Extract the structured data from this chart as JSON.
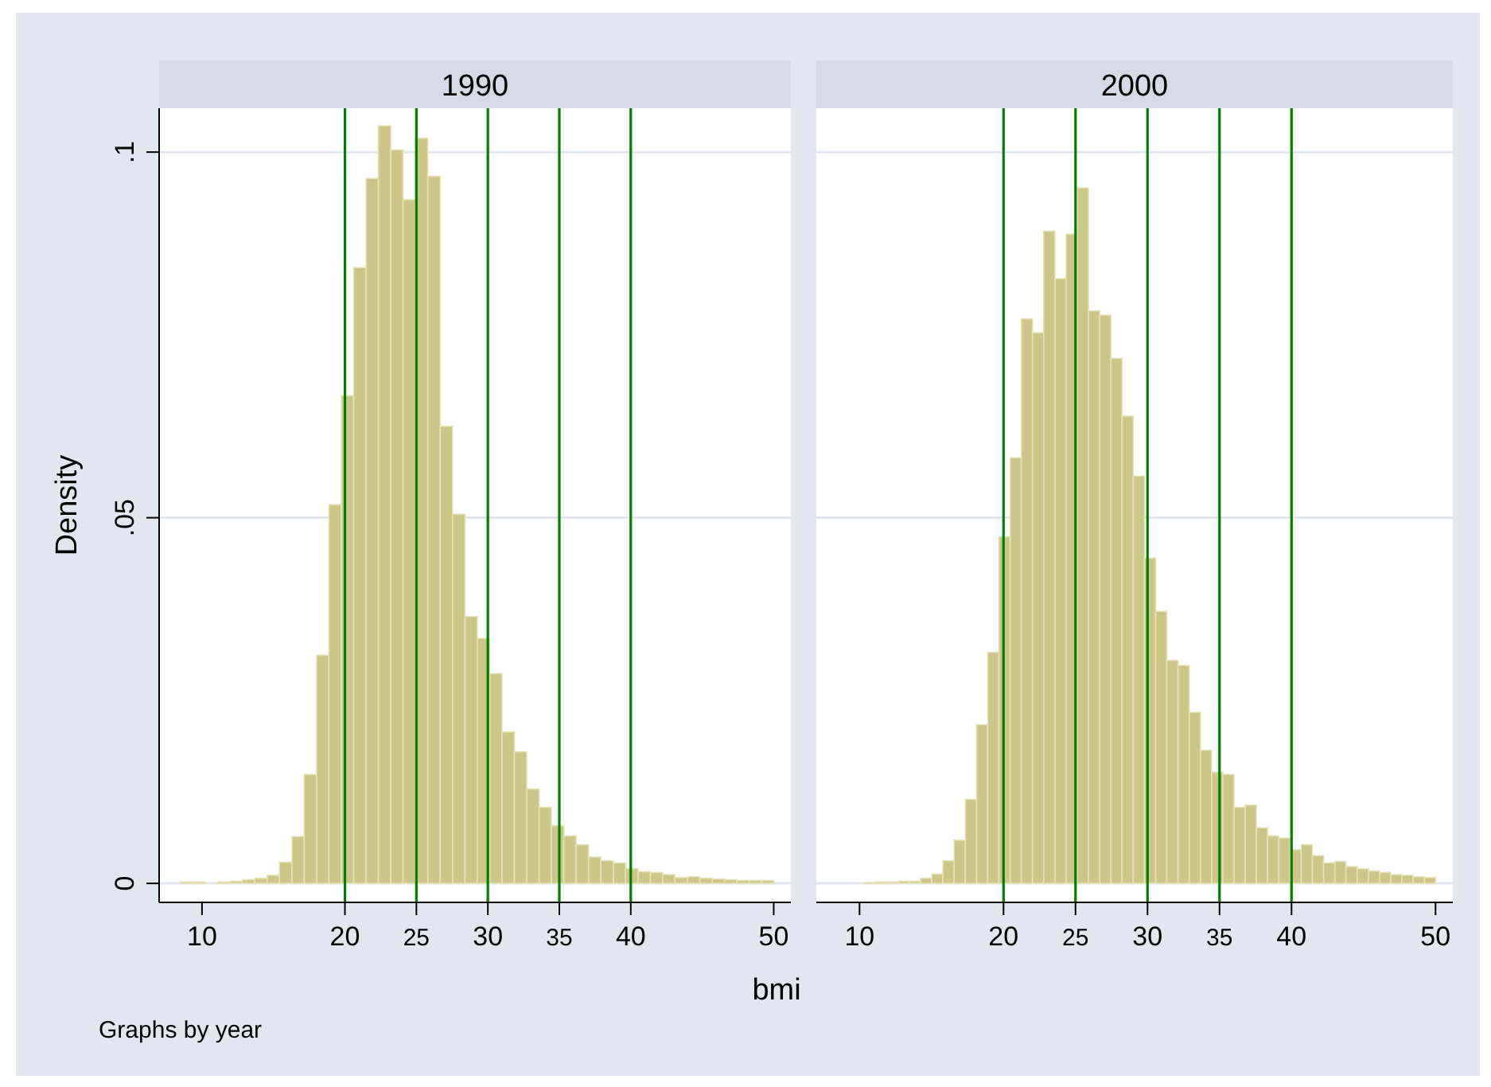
{
  "chart_data": [
    {
      "type": "histogram",
      "title": "1990",
      "ylabel": "Density",
      "xlabel": "bmi",
      "annotations": [
        "Graphs by year"
      ],
      "color": "#cdc689",
      "grid": "y",
      "tick_labels": true,
      "bins": [
        8.5,
        9.37,
        10.23,
        11.1,
        11.96,
        12.83,
        13.69,
        14.56,
        15.42,
        16.29,
        17.15,
        18.02,
        18.88,
        19.75,
        20.61,
        21.48,
        22.34,
        23.21,
        24.07,
        24.94,
        25.8,
        26.67,
        27.53,
        28.4,
        29.26,
        30.13,
        30.99,
        31.86,
        32.72,
        33.59,
        34.45,
        35.32,
        36.18,
        37.05,
        37.91,
        38.78,
        39.64,
        40.51,
        41.37,
        42.24,
        43.1,
        43.97,
        44.83,
        45.7,
        46.56,
        47.43,
        48.29,
        49.16,
        50.02
      ],
      "values": [
        0.0002,
        0.0002,
        0,
        0.0002,
        0.0003,
        0.0005,
        0.0007,
        0.0011,
        0.0029,
        0.0064,
        0.0149,
        0.0312,
        0.0518,
        0.0667,
        0.0842,
        0.0964,
        0.1036,
        0.1003,
        0.0935,
        0.1019,
        0.0967,
        0.0625,
        0.0505,
        0.0365,
        0.0335,
        0.0287,
        0.0207,
        0.018,
        0.0129,
        0.0104,
        0.0079,
        0.0065,
        0.0053,
        0.0036,
        0.0031,
        0.0028,
        0.002,
        0.0016,
        0.0015,
        0.0012,
        0.0008,
        0.0009,
        0.0007,
        0.0006,
        0.0005,
        0.0004,
        0.0004,
        0.0004
      ],
      "xlim": [
        7,
        51.2
      ],
      "ylim": [
        -0.0026,
        0.106
      ],
      "xticks": [
        10,
        20,
        25,
        30,
        35,
        40,
        50
      ],
      "yticks": [
        {
          "value": 0,
          "label": "0"
        },
        {
          "value": 0.05,
          "label": ".05"
        },
        {
          "value": 0.1,
          "label": ".1"
        }
      ],
      "ref_lines": [
        {
          "axis": "x",
          "value": 20,
          "color": "#008000"
        },
        {
          "axis": "x",
          "value": 25,
          "color": "#008000"
        },
        {
          "axis": "x",
          "value": 30,
          "color": "#008000"
        },
        {
          "axis": "x",
          "value": 35,
          "color": "#008000"
        },
        {
          "axis": "x",
          "value": 40,
          "color": "#008000"
        }
      ]
    },
    {
      "type": "histogram",
      "title": "2000",
      "color": "#cdc689",
      "grid": "y",
      "tick_labels": "x",
      "bins": [
        10.35,
        11.13,
        11.91,
        12.68,
        13.46,
        14.24,
        15.02,
        15.79,
        16.57,
        17.35,
        18.13,
        18.9,
        19.68,
        20.46,
        21.24,
        22.01,
        22.79,
        23.57,
        24.35,
        25.12,
        25.9,
        26.68,
        27.46,
        28.23,
        29.01,
        29.79,
        30.57,
        31.34,
        32.12,
        32.9,
        33.68,
        34.45,
        35.23,
        36.01,
        36.79,
        37.56,
        38.34,
        39.12,
        39.9,
        40.67,
        41.45,
        42.23,
        43.01,
        43.78,
        44.56,
        45.34,
        46.12,
        46.89,
        47.67,
        48.45,
        49.23,
        50.0
      ],
      "values": [
        0.0001,
        0.0002,
        0.0002,
        0.0003,
        0.0003,
        0.0007,
        0.0013,
        0.0031,
        0.0059,
        0.0115,
        0.0217,
        0.0316,
        0.0474,
        0.0582,
        0.0772,
        0.0753,
        0.0892,
        0.0827,
        0.0888,
        0.0951,
        0.0783,
        0.0777,
        0.0718,
        0.0639,
        0.0557,
        0.0445,
        0.0372,
        0.0305,
        0.0298,
        0.0234,
        0.0182,
        0.0152,
        0.0149,
        0.0104,
        0.0107,
        0.0076,
        0.0065,
        0.0062,
        0.0046,
        0.0053,
        0.0038,
        0.0028,
        0.003,
        0.0023,
        0.002,
        0.0017,
        0.0015,
        0.0012,
        0.0011,
        0.0009,
        0.0008
      ],
      "xlim": [
        7,
        51.2
      ],
      "ylim": [
        -0.0026,
        0.106
      ],
      "xticks": [
        10,
        20,
        25,
        30,
        35,
        40,
        50
      ],
      "yticks": [
        0,
        0.05,
        0.1
      ],
      "ref_lines": [
        {
          "axis": "x",
          "value": 20,
          "color": "#008000"
        },
        {
          "axis": "x",
          "value": 25,
          "color": "#008000"
        },
        {
          "axis": "x",
          "value": 30,
          "color": "#008000"
        },
        {
          "axis": "x",
          "value": 35,
          "color": "#008000"
        },
        {
          "axis": "x",
          "value": 40,
          "color": "#008000"
        }
      ]
    }
  ]
}
